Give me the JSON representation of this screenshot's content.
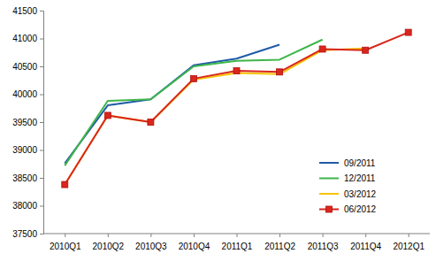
{
  "chart_data": {
    "type": "line",
    "categories": [
      "2010Q1",
      "2010Q2",
      "2010Q3",
      "2010Q4",
      "2011Q1",
      "2011Q2",
      "2011Q3",
      "2011Q4",
      "2012Q1"
    ],
    "series": [
      {
        "name": "09/2011",
        "color": "#1f5ba8",
        "values": [
          38760,
          39800,
          39910,
          40520,
          40640,
          40890,
          null,
          null,
          null
        ]
      },
      {
        "name": "12/2011",
        "color": "#3db54a",
        "values": [
          38720,
          39880,
          39910,
          40500,
          40600,
          40620,
          40980,
          null,
          null
        ]
      },
      {
        "name": "03/2012",
        "color": "#f5c400",
        "values": [
          38380,
          39620,
          39500,
          40260,
          40380,
          40360,
          40790,
          40820,
          null
        ]
      },
      {
        "name": "06/2012",
        "color": "#d9261c",
        "marker": "square",
        "values": [
          38380,
          39620,
          39500,
          40280,
          40420,
          40400,
          40810,
          40790,
          41110
        ]
      }
    ],
    "ylim": [
      37500,
      41500
    ],
    "yticks": [
      37500,
      38000,
      38500,
      39000,
      39500,
      40000,
      40500,
      41000,
      41500
    ],
    "grid": false,
    "legend": "lower-right"
  }
}
